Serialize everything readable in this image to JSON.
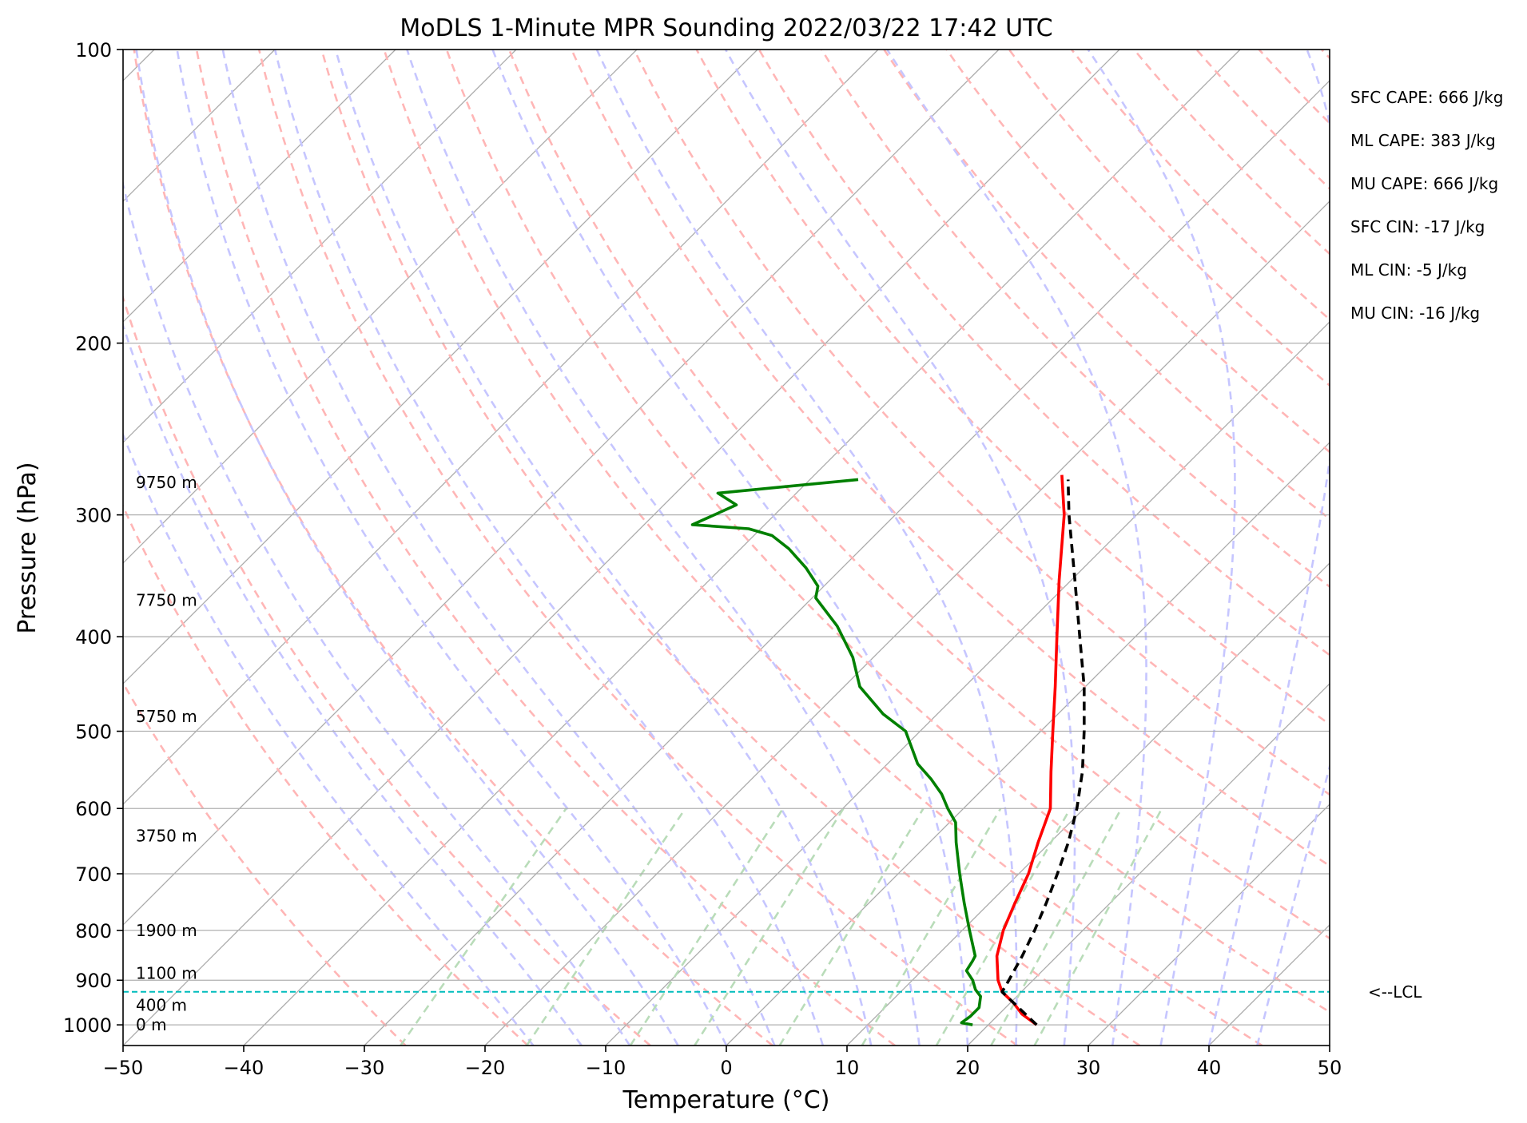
{
  "chart_data": {
    "type": "line",
    "title": "MoDLS 1-Minute MPR Sounding 2022/03/22 17:42 UTC",
    "xlabel": "Temperature (°C)",
    "ylabel": "Pressure (hPa)",
    "xlim": [
      -50,
      50
    ],
    "ylim": [
      1050,
      100
    ],
    "y_scale": "log",
    "x_ticks": [
      "−50",
      "−40",
      "−30",
      "−20",
      "−10",
      "0",
      "10",
      "20",
      "30",
      "40",
      "50"
    ],
    "y_ticks": [
      "100",
      "200",
      "300",
      "400",
      "500",
      "600",
      "700",
      "800",
      "900",
      "1000"
    ],
    "grid": true,
    "background_lines": {
      "isotherms_color": "#aaaaaa",
      "dry_adiabats_color": "#ffb6b6",
      "moist_adiabats_color": "#c6c6ff",
      "mixing_ratio_color": "#b9dcb9"
    },
    "series": [
      {
        "color": "#ff0000",
        "style": "solid",
        "points": [
          [
            1000,
            24.0
          ],
          [
            975,
            21.9
          ],
          [
            950,
            20.3
          ],
          [
            925,
            18.4
          ],
          [
            900,
            17.1
          ],
          [
            850,
            15.0
          ],
          [
            800,
            13.4
          ],
          [
            750,
            12.1
          ],
          [
            700,
            10.8
          ],
          [
            650,
            9.0
          ],
          [
            600,
            7.2
          ],
          [
            550,
            4.2
          ],
          [
            500,
            1.0
          ],
          [
            450,
            -2.5
          ],
          [
            400,
            -6.5
          ],
          [
            350,
            -11.0
          ],
          [
            300,
            -16.0
          ],
          [
            273,
            -19.5
          ]
        ]
      },
      {
        "color": "#008000",
        "style": "solid",
        "points": [
          [
            1000,
            18.7
          ],
          [
            995,
            17.6
          ],
          [
            980,
            17.8
          ],
          [
            960,
            17.8
          ],
          [
            935,
            17.0
          ],
          [
            920,
            16.0
          ],
          [
            900,
            15.0
          ],
          [
            880,
            13.7
          ],
          [
            860,
            13.4
          ],
          [
            850,
            13.2
          ],
          [
            800,
            10.6
          ],
          [
            750,
            7.9
          ],
          [
            700,
            5.1
          ],
          [
            650,
            2.2
          ],
          [
            620,
            0.5
          ],
          [
            600,
            -1.3
          ],
          [
            580,
            -3.0
          ],
          [
            560,
            -5.1
          ],
          [
            540,
            -7.5
          ],
          [
            500,
            -11.2
          ],
          [
            480,
            -14.5
          ],
          [
            450,
            -18.7
          ],
          [
            420,
            -21.7
          ],
          [
            390,
            -25.6
          ],
          [
            365,
            -29.7
          ],
          [
            355,
            -30.5
          ],
          [
            340,
            -33.0
          ],
          [
            325,
            -36.0
          ],
          [
            315,
            -38.5
          ],
          [
            310,
            -41.0
          ],
          [
            307,
            -46.0
          ],
          [
            300,
            -45.0
          ],
          [
            293,
            -44.0
          ],
          [
            285,
            -46.5
          ],
          [
            276,
            -36.0
          ]
        ]
      },
      {
        "color": "#000000",
        "style": "dashed",
        "points": [
          [
            1000,
            24.0
          ],
          [
            925,
            18.4
          ],
          [
            900,
            18.0
          ],
          [
            850,
            17.1
          ],
          [
            800,
            16.0
          ],
          [
            750,
            14.7
          ],
          [
            700,
            13.2
          ],
          [
            650,
            11.5
          ],
          [
            600,
            9.4
          ],
          [
            550,
            6.8
          ],
          [
            500,
            3.6
          ],
          [
            450,
            -0.1
          ],
          [
            400,
            -4.6
          ],
          [
            350,
            -9.7
          ],
          [
            300,
            -15.6
          ],
          [
            276,
            -18.6
          ]
        ]
      }
    ],
    "lcl": {
      "pressure": 925,
      "label": "<--LCL",
      "color": "#00bcbc"
    },
    "height_labels": [
      {
        "pressure": 1000,
        "label": "0 m"
      },
      {
        "pressure": 955,
        "label": "400 m"
      },
      {
        "pressure": 885,
        "label": "1100 m"
      },
      {
        "pressure": 800,
        "label": "1900 m"
      },
      {
        "pressure": 640,
        "label": "3750 m"
      },
      {
        "pressure": 483,
        "label": "5750 m"
      },
      {
        "pressure": 367,
        "label": "7750 m"
      },
      {
        "pressure": 278,
        "label": "9750 m"
      }
    ],
    "annotations": [
      "SFC CAPE: 666 J/kg",
      "ML CAPE: 383 J/kg",
      "MU CAPE: 666 J/kg",
      "SFC CIN: -17 J/kg",
      "ML CIN: -5 J/kg",
      "MU CIN: -16 J/kg"
    ]
  }
}
